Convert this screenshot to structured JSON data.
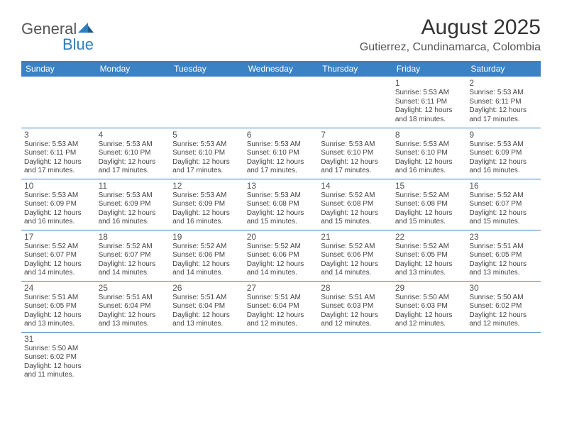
{
  "logo": {
    "text1": "General",
    "text2": "Blue"
  },
  "title": "August 2025",
  "location": "Gutierrez, Cundinamarca, Colombia",
  "colors": {
    "header_bg": "#3b82c4",
    "header_text": "#ffffff",
    "border": "#3b82c4",
    "page_bg": "#ffffff",
    "text": "#333333",
    "muted": "#555555"
  },
  "day_headers": [
    "Sunday",
    "Monday",
    "Tuesday",
    "Wednesday",
    "Thursday",
    "Friday",
    "Saturday"
  ],
  "weeks": [
    [
      null,
      null,
      null,
      null,
      null,
      {
        "n": "1",
        "sr": "Sunrise: 5:53 AM",
        "ss": "Sunset: 6:11 PM",
        "d1": "Daylight: 12 hours",
        "d2": "and 18 minutes."
      },
      {
        "n": "2",
        "sr": "Sunrise: 5:53 AM",
        "ss": "Sunset: 6:11 PM",
        "d1": "Daylight: 12 hours",
        "d2": "and 17 minutes."
      }
    ],
    [
      {
        "n": "3",
        "sr": "Sunrise: 5:53 AM",
        "ss": "Sunset: 6:11 PM",
        "d1": "Daylight: 12 hours",
        "d2": "and 17 minutes."
      },
      {
        "n": "4",
        "sr": "Sunrise: 5:53 AM",
        "ss": "Sunset: 6:10 PM",
        "d1": "Daylight: 12 hours",
        "d2": "and 17 minutes."
      },
      {
        "n": "5",
        "sr": "Sunrise: 5:53 AM",
        "ss": "Sunset: 6:10 PM",
        "d1": "Daylight: 12 hours",
        "d2": "and 17 minutes."
      },
      {
        "n": "6",
        "sr": "Sunrise: 5:53 AM",
        "ss": "Sunset: 6:10 PM",
        "d1": "Daylight: 12 hours",
        "d2": "and 17 minutes."
      },
      {
        "n": "7",
        "sr": "Sunrise: 5:53 AM",
        "ss": "Sunset: 6:10 PM",
        "d1": "Daylight: 12 hours",
        "d2": "and 17 minutes."
      },
      {
        "n": "8",
        "sr": "Sunrise: 5:53 AM",
        "ss": "Sunset: 6:10 PM",
        "d1": "Daylight: 12 hours",
        "d2": "and 16 minutes."
      },
      {
        "n": "9",
        "sr": "Sunrise: 5:53 AM",
        "ss": "Sunset: 6:09 PM",
        "d1": "Daylight: 12 hours",
        "d2": "and 16 minutes."
      }
    ],
    [
      {
        "n": "10",
        "sr": "Sunrise: 5:53 AM",
        "ss": "Sunset: 6:09 PM",
        "d1": "Daylight: 12 hours",
        "d2": "and 16 minutes."
      },
      {
        "n": "11",
        "sr": "Sunrise: 5:53 AM",
        "ss": "Sunset: 6:09 PM",
        "d1": "Daylight: 12 hours",
        "d2": "and 16 minutes."
      },
      {
        "n": "12",
        "sr": "Sunrise: 5:53 AM",
        "ss": "Sunset: 6:09 PM",
        "d1": "Daylight: 12 hours",
        "d2": "and 16 minutes."
      },
      {
        "n": "13",
        "sr": "Sunrise: 5:53 AM",
        "ss": "Sunset: 6:08 PM",
        "d1": "Daylight: 12 hours",
        "d2": "and 15 minutes."
      },
      {
        "n": "14",
        "sr": "Sunrise: 5:52 AM",
        "ss": "Sunset: 6:08 PM",
        "d1": "Daylight: 12 hours",
        "d2": "and 15 minutes."
      },
      {
        "n": "15",
        "sr": "Sunrise: 5:52 AM",
        "ss": "Sunset: 6:08 PM",
        "d1": "Daylight: 12 hours",
        "d2": "and 15 minutes."
      },
      {
        "n": "16",
        "sr": "Sunrise: 5:52 AM",
        "ss": "Sunset: 6:07 PM",
        "d1": "Daylight: 12 hours",
        "d2": "and 15 minutes."
      }
    ],
    [
      {
        "n": "17",
        "sr": "Sunrise: 5:52 AM",
        "ss": "Sunset: 6:07 PM",
        "d1": "Daylight: 12 hours",
        "d2": "and 14 minutes."
      },
      {
        "n": "18",
        "sr": "Sunrise: 5:52 AM",
        "ss": "Sunset: 6:07 PM",
        "d1": "Daylight: 12 hours",
        "d2": "and 14 minutes."
      },
      {
        "n": "19",
        "sr": "Sunrise: 5:52 AM",
        "ss": "Sunset: 6:06 PM",
        "d1": "Daylight: 12 hours",
        "d2": "and 14 minutes."
      },
      {
        "n": "20",
        "sr": "Sunrise: 5:52 AM",
        "ss": "Sunset: 6:06 PM",
        "d1": "Daylight: 12 hours",
        "d2": "and 14 minutes."
      },
      {
        "n": "21",
        "sr": "Sunrise: 5:52 AM",
        "ss": "Sunset: 6:06 PM",
        "d1": "Daylight: 12 hours",
        "d2": "and 14 minutes."
      },
      {
        "n": "22",
        "sr": "Sunrise: 5:52 AM",
        "ss": "Sunset: 6:05 PM",
        "d1": "Daylight: 12 hours",
        "d2": "and 13 minutes."
      },
      {
        "n": "23",
        "sr": "Sunrise: 5:51 AM",
        "ss": "Sunset: 6:05 PM",
        "d1": "Daylight: 12 hours",
        "d2": "and 13 minutes."
      }
    ],
    [
      {
        "n": "24",
        "sr": "Sunrise: 5:51 AM",
        "ss": "Sunset: 6:05 PM",
        "d1": "Daylight: 12 hours",
        "d2": "and 13 minutes."
      },
      {
        "n": "25",
        "sr": "Sunrise: 5:51 AM",
        "ss": "Sunset: 6:04 PM",
        "d1": "Daylight: 12 hours",
        "d2": "and 13 minutes."
      },
      {
        "n": "26",
        "sr": "Sunrise: 5:51 AM",
        "ss": "Sunset: 6:04 PM",
        "d1": "Daylight: 12 hours",
        "d2": "and 13 minutes."
      },
      {
        "n": "27",
        "sr": "Sunrise: 5:51 AM",
        "ss": "Sunset: 6:04 PM",
        "d1": "Daylight: 12 hours",
        "d2": "and 12 minutes."
      },
      {
        "n": "28",
        "sr": "Sunrise: 5:51 AM",
        "ss": "Sunset: 6:03 PM",
        "d1": "Daylight: 12 hours",
        "d2": "and 12 minutes."
      },
      {
        "n": "29",
        "sr": "Sunrise: 5:50 AM",
        "ss": "Sunset: 6:03 PM",
        "d1": "Daylight: 12 hours",
        "d2": "and 12 minutes."
      },
      {
        "n": "30",
        "sr": "Sunrise: 5:50 AM",
        "ss": "Sunset: 6:02 PM",
        "d1": "Daylight: 12 hours",
        "d2": "and 12 minutes."
      }
    ],
    [
      {
        "n": "31",
        "sr": "Sunrise: 5:50 AM",
        "ss": "Sunset: 6:02 PM",
        "d1": "Daylight: 12 hours",
        "d2": "and 11 minutes."
      },
      null,
      null,
      null,
      null,
      null,
      null
    ]
  ]
}
